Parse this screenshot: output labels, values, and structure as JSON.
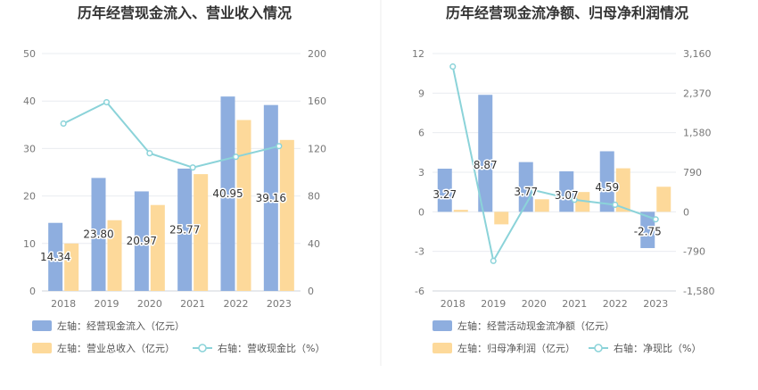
{
  "colors": {
    "bar_primary": "#8eaedf",
    "bar_secondary": "#fdd99a",
    "line": "#8bd3d9",
    "grid": "#e9ecf0",
    "divider": "#eeeeee"
  },
  "chart_data": [
    {
      "type": "bar",
      "title": "历年经营现金流入、营业收入情况",
      "categories": [
        "2018",
        "2019",
        "2020",
        "2021",
        "2022",
        "2023"
      ],
      "left_axis": {
        "ticks": [
          "0",
          "10",
          "20",
          "30",
          "40",
          "50"
        ],
        "min": 0,
        "max": 50
      },
      "right_axis": {
        "ticks": [
          "0",
          "40",
          "80",
          "120",
          "160",
          "200"
        ],
        "min": 0,
        "max": 200
      },
      "series": [
        {
          "name": "左轴：经营现金流入（亿元）",
          "type": "bar",
          "axis": "left",
          "values": [
            14.34,
            23.8,
            20.97,
            25.77,
            40.95,
            39.16
          ],
          "labels": [
            "14.34",
            "23.80",
            "20.97",
            "25.77",
            "40.95",
            "39.16"
          ]
        },
        {
          "name": "左轴：营业总收入（亿元）",
          "type": "bar",
          "axis": "left",
          "values": [
            10.0,
            14.9,
            18.1,
            24.6,
            36.0,
            31.8
          ]
        },
        {
          "name": "右轴：营收现金比（%）",
          "type": "line",
          "axis": "right",
          "values": [
            141,
            159,
            116,
            104,
            113,
            122
          ]
        }
      ]
    },
    {
      "type": "bar",
      "title": "历年经营现金流净额、归母净利润情况",
      "categories": [
        "2018",
        "2019",
        "2020",
        "2021",
        "2022",
        "2023"
      ],
      "left_axis": {
        "ticks": [
          "-6",
          "-3",
          "0",
          "3",
          "6",
          "9",
          "12"
        ],
        "min": -6,
        "max": 12
      },
      "right_axis": {
        "ticks": [
          "-1,580",
          "-790",
          "0",
          "790",
          "1,580",
          "2,370",
          "3,160"
        ],
        "min": -1580,
        "max": 3160
      },
      "series": [
        {
          "name": "左轴：经营活动现金流净额（亿元）",
          "type": "bar",
          "axis": "left",
          "values": [
            3.27,
            8.87,
            3.77,
            3.07,
            4.59,
            -2.75
          ],
          "labels": [
            "3.27",
            "8.87",
            "3.77",
            "3.07",
            "4.59",
            "-2.75"
          ]
        },
        {
          "name": "左轴：归母净利润（亿元）",
          "type": "bar",
          "axis": "left",
          "values": [
            0.15,
            -0.95,
            0.95,
            1.5,
            3.3,
            1.9
          ]
        },
        {
          "name": "右轴：净现比（%）",
          "type": "line",
          "axis": "right",
          "values": [
            2900,
            -980,
            430,
            240,
            140,
            -150
          ]
        }
      ]
    }
  ]
}
